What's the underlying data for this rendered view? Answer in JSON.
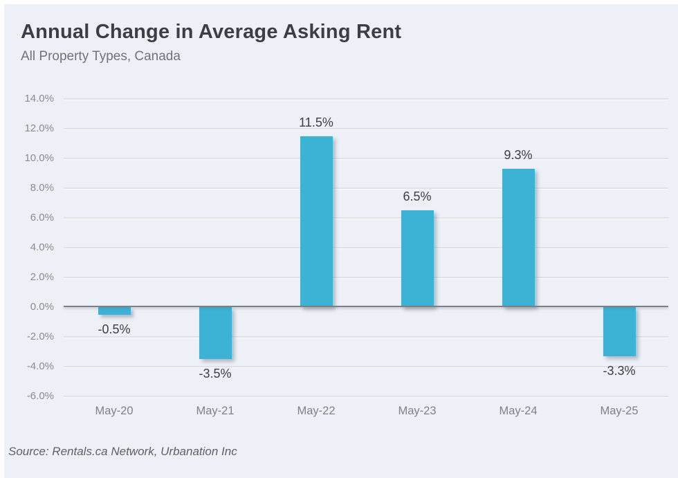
{
  "header": {
    "title": "Annual Change in Average Asking Rent",
    "subtitle": "All Property Types, Canada"
  },
  "footer": {
    "source": "Source: Rentals.ca Network, Urbanation Inc"
  },
  "chart_data": {
    "type": "bar",
    "title": "Annual Change in Average Asking Rent",
    "subtitle": "All Property Types, Canada",
    "categories": [
      "May-20",
      "May-21",
      "May-22",
      "May-23",
      "May-24",
      "May-25"
    ],
    "values": [
      -0.5,
      -3.5,
      11.5,
      6.5,
      9.3,
      -3.3
    ],
    "value_labels": [
      "-0.5%",
      "-3.5%",
      "11.5%",
      "6.5%",
      "9.3%",
      "-3.3%"
    ],
    "xlabel": "",
    "ylabel": "",
    "ylim": [
      -6,
      14
    ],
    "ytick_step": 2,
    "ytick_labels": [
      "14.0%",
      "12.0%",
      "10.0%",
      "8.0%",
      "6.0%",
      "4.0%",
      "2.0%",
      "0.0%",
      "-2.0%",
      "-4.0%",
      "-6.0%"
    ],
    "grid": true,
    "legend_position": "none",
    "colors": {
      "bar": "#3cb3d4",
      "gridline": "#dde2e9",
      "zero_line": "#7c8086",
      "background": "#edf0f6",
      "title": "#3b3e44",
      "subtitle": "#6f7379",
      "tick_label": "#888c92",
      "value_label": "#3a3d43",
      "source": "#5c6066"
    }
  }
}
